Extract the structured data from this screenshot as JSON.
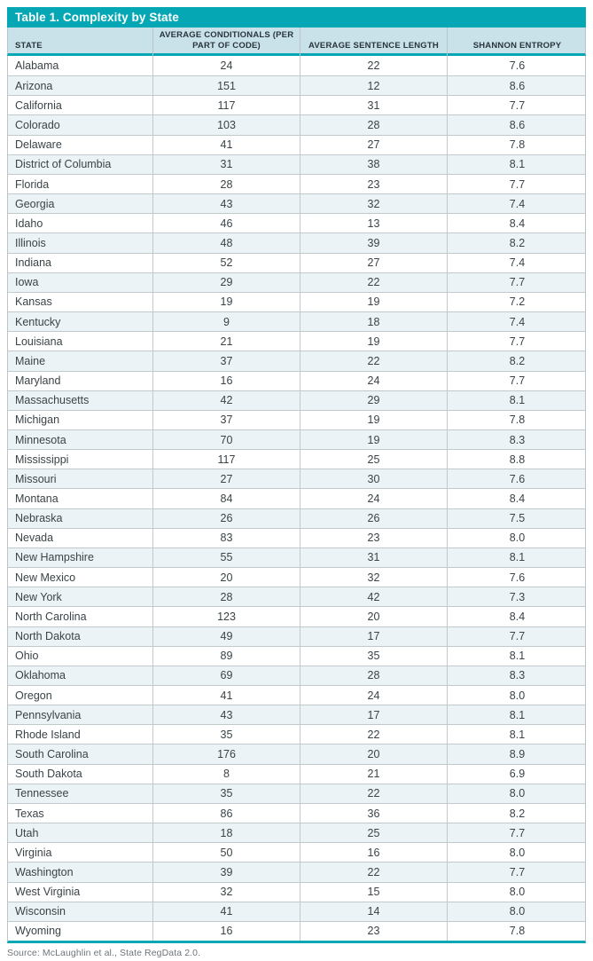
{
  "title": "Table 1. Complexity by State",
  "footer": {
    "source": "Source: McLaughlin et al., State RegData 2.0."
  },
  "colors": {
    "accent_teal": "#05a7b4",
    "header_bg": "#c9e1e9",
    "row_alt_bg": "#ecf3f6",
    "grid_border": "#c2c9cd",
    "title_text": "#ffffff",
    "body_text": "#3a4347",
    "source_text": "#6d767c"
  },
  "table": {
    "columns": [
      {
        "label": "STATE"
      },
      {
        "label": "AVERAGE CONDITIONALS (PER PART OF CODE)"
      },
      {
        "label": "AVERAGE SENTENCE LENGTH"
      },
      {
        "label": "SHANNON ENTROPY"
      }
    ],
    "rows": [
      {
        "state": "Alabama",
        "avg_conditionals": "24",
        "avg_sentence_length": "22",
        "shannon_entropy": "7.6"
      },
      {
        "state": "Arizona",
        "avg_conditionals": "151",
        "avg_sentence_length": "12",
        "shannon_entropy": "8.6"
      },
      {
        "state": "California",
        "avg_conditionals": "117",
        "avg_sentence_length": "31",
        "shannon_entropy": "7.7"
      },
      {
        "state": "Colorado",
        "avg_conditionals": "103",
        "avg_sentence_length": "28",
        "shannon_entropy": "8.6"
      },
      {
        "state": "Delaware",
        "avg_conditionals": "41",
        "avg_sentence_length": "27",
        "shannon_entropy": "7.8"
      },
      {
        "state": "District of Columbia",
        "avg_conditionals": "31",
        "avg_sentence_length": "38",
        "shannon_entropy": "8.1"
      },
      {
        "state": "Florida",
        "avg_conditionals": "28",
        "avg_sentence_length": "23",
        "shannon_entropy": "7.7"
      },
      {
        "state": "Georgia",
        "avg_conditionals": "43",
        "avg_sentence_length": "32",
        "shannon_entropy": "7.4"
      },
      {
        "state": "Idaho",
        "avg_conditionals": "46",
        "avg_sentence_length": "13",
        "shannon_entropy": "8.4"
      },
      {
        "state": "Illinois",
        "avg_conditionals": "48",
        "avg_sentence_length": "39",
        "shannon_entropy": "8.2"
      },
      {
        "state": "Indiana",
        "avg_conditionals": "52",
        "avg_sentence_length": "27",
        "shannon_entropy": "7.4"
      },
      {
        "state": "Iowa",
        "avg_conditionals": "29",
        "avg_sentence_length": "22",
        "shannon_entropy": "7.7"
      },
      {
        "state": "Kansas",
        "avg_conditionals": "19",
        "avg_sentence_length": "19",
        "shannon_entropy": "7.2"
      },
      {
        "state": "Kentucky",
        "avg_conditionals": "9",
        "avg_sentence_length": "18",
        "shannon_entropy": "7.4"
      },
      {
        "state": "Louisiana",
        "avg_conditionals": "21",
        "avg_sentence_length": "19",
        "shannon_entropy": "7.7"
      },
      {
        "state": "Maine",
        "avg_conditionals": "37",
        "avg_sentence_length": "22",
        "shannon_entropy": "8.2"
      },
      {
        "state": "Maryland",
        "avg_conditionals": "16",
        "avg_sentence_length": "24",
        "shannon_entropy": "7.7"
      },
      {
        "state": "Massachusetts",
        "avg_conditionals": "42",
        "avg_sentence_length": "29",
        "shannon_entropy": "8.1"
      },
      {
        "state": "Michigan",
        "avg_conditionals": "37",
        "avg_sentence_length": "19",
        "shannon_entropy": "7.8"
      },
      {
        "state": "Minnesota",
        "avg_conditionals": "70",
        "avg_sentence_length": "19",
        "shannon_entropy": "8.3"
      },
      {
        "state": "Mississippi",
        "avg_conditionals": "117",
        "avg_sentence_length": "25",
        "shannon_entropy": "8.8"
      },
      {
        "state": "Missouri",
        "avg_conditionals": "27",
        "avg_sentence_length": "30",
        "shannon_entropy": "7.6"
      },
      {
        "state": "Montana",
        "avg_conditionals": "84",
        "avg_sentence_length": "24",
        "shannon_entropy": "8.4"
      },
      {
        "state": "Nebraska",
        "avg_conditionals": "26",
        "avg_sentence_length": "26",
        "shannon_entropy": "7.5"
      },
      {
        "state": "Nevada",
        "avg_conditionals": "83",
        "avg_sentence_length": "23",
        "shannon_entropy": "8.0"
      },
      {
        "state": "New Hampshire",
        "avg_conditionals": "55",
        "avg_sentence_length": "31",
        "shannon_entropy": "8.1"
      },
      {
        "state": "New Mexico",
        "avg_conditionals": "20",
        "avg_sentence_length": "32",
        "shannon_entropy": "7.6"
      },
      {
        "state": "New York",
        "avg_conditionals": "28",
        "avg_sentence_length": "42",
        "shannon_entropy": "7.3"
      },
      {
        "state": "North Carolina",
        "avg_conditionals": "123",
        "avg_sentence_length": "20",
        "shannon_entropy": "8.4"
      },
      {
        "state": "North Dakota",
        "avg_conditionals": "49",
        "avg_sentence_length": "17",
        "shannon_entropy": "7.7"
      },
      {
        "state": "Ohio",
        "avg_conditionals": "89",
        "avg_sentence_length": "35",
        "shannon_entropy": "8.1"
      },
      {
        "state": "Oklahoma",
        "avg_conditionals": "69",
        "avg_sentence_length": "28",
        "shannon_entropy": "8.3"
      },
      {
        "state": "Oregon",
        "avg_conditionals": "41",
        "avg_sentence_length": "24",
        "shannon_entropy": "8.0"
      },
      {
        "state": "Pennsylvania",
        "avg_conditionals": "43",
        "avg_sentence_length": "17",
        "shannon_entropy": "8.1"
      },
      {
        "state": "Rhode Island",
        "avg_conditionals": "35",
        "avg_sentence_length": "22",
        "shannon_entropy": "8.1"
      },
      {
        "state": "South Carolina",
        "avg_conditionals": "176",
        "avg_sentence_length": "20",
        "shannon_entropy": "8.9"
      },
      {
        "state": "South Dakota",
        "avg_conditionals": "8",
        "avg_sentence_length": "21",
        "shannon_entropy": "6.9"
      },
      {
        "state": "Tennessee",
        "avg_conditionals": "35",
        "avg_sentence_length": "22",
        "shannon_entropy": "8.0"
      },
      {
        "state": "Texas",
        "avg_conditionals": "86",
        "avg_sentence_length": "36",
        "shannon_entropy": "8.2"
      },
      {
        "state": "Utah",
        "avg_conditionals": "18",
        "avg_sentence_length": "25",
        "shannon_entropy": "7.7"
      },
      {
        "state": "Virginia",
        "avg_conditionals": "50",
        "avg_sentence_length": "16",
        "shannon_entropy": "8.0"
      },
      {
        "state": "Washington",
        "avg_conditionals": "39",
        "avg_sentence_length": "22",
        "shannon_entropy": "7.7"
      },
      {
        "state": "West Virginia",
        "avg_conditionals": "32",
        "avg_sentence_length": "15",
        "shannon_entropy": "8.0"
      },
      {
        "state": "Wisconsin",
        "avg_conditionals": "41",
        "avg_sentence_length": "14",
        "shannon_entropy": "8.0"
      },
      {
        "state": "Wyoming",
        "avg_conditionals": "16",
        "avg_sentence_length": "23",
        "shannon_entropy": "7.8"
      }
    ]
  }
}
